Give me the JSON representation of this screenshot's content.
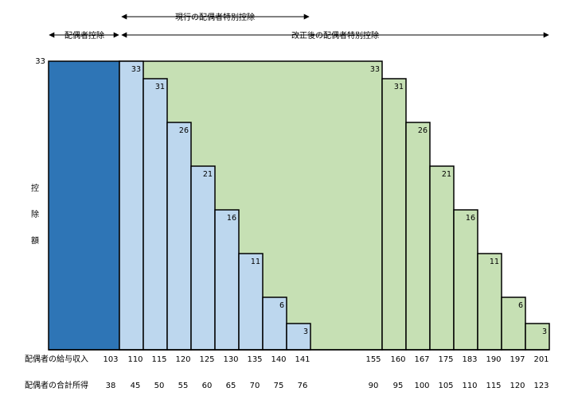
{
  "colors": {
    "dark_block": "#2e75b6",
    "current_steps": "#bdd7ee",
    "revised_area": "#c6e0b4",
    "stroke": "#000000"
  },
  "top_labels": {
    "current_special": "現行の配偶者特別控除",
    "spouse_deduction": "配偶者控除",
    "revised_special": "改正後の配偶者特別控除"
  },
  "y_axis": {
    "max_label": "33",
    "title_chars": [
      "控",
      "除",
      "額"
    ]
  },
  "row_labels": {
    "salary": "配偶者の給与収入",
    "income": "配偶者の合計所得"
  },
  "chart_data": {
    "type": "bar",
    "ylim": [
      0,
      33
    ],
    "spouse_deduction": {
      "value": 33,
      "salary_end": "103",
      "income_end": "38"
    },
    "current_steps": {
      "values": [
        33,
        31,
        26,
        21,
        16,
        11,
        6,
        3
      ],
      "salary": [
        "110",
        "115",
        "120",
        "125",
        "130",
        "135",
        "140",
        "141"
      ],
      "income": [
        "45",
        "50",
        "55",
        "60",
        "65",
        "70",
        "75",
        "76"
      ]
    },
    "revised_flat": {
      "value": 33,
      "salary_end": "155",
      "income_end": "90"
    },
    "revised_steps": {
      "values": [
        31,
        26,
        21,
        16,
        11,
        6,
        3
      ],
      "salary": [
        "160",
        "167",
        "175",
        "183",
        "190",
        "197",
        "201"
      ],
      "income": [
        "95",
        "100",
        "105",
        "110",
        "115",
        "120",
        "123"
      ]
    },
    "revised_corner_label": "33"
  }
}
